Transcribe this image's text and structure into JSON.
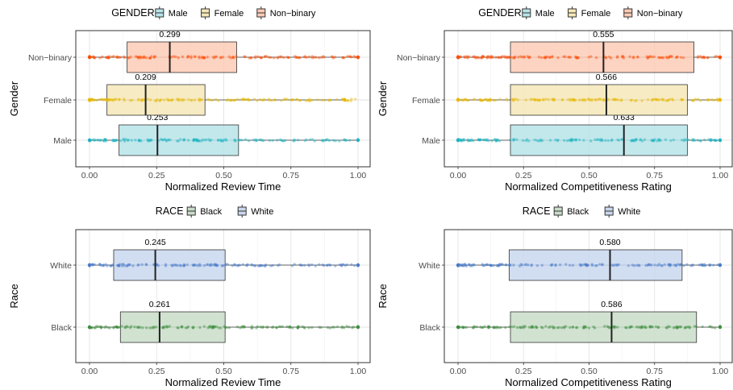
{
  "chart_data": [
    {
      "type": "boxplot",
      "legend_title": "GENDER",
      "legend_position": "top",
      "xlabel": "Normalized Review Time",
      "ylabel": "Gender",
      "xlim": [
        0,
        1
      ],
      "xticks": [
        "0.00",
        "0.25",
        "0.50",
        "0.75",
        "1.00"
      ],
      "grid": true,
      "categories": [
        "Male",
        "Female",
        "Non−binary"
      ],
      "series": [
        {
          "name": "Male",
          "color": "#1CB3C2",
          "fill": "#B7E4E9",
          "q1": 0.11,
          "median": 0.253,
          "q3": 0.555,
          "min": 0.0,
          "max": 1.0,
          "label": "0.253"
        },
        {
          "name": "Female",
          "color": "#E7B800",
          "fill": "#F6E8B8",
          "q1": 0.065,
          "median": 0.209,
          "q3": 0.43,
          "min": 0.0,
          "max": 0.95,
          "label": "0.209"
        },
        {
          "name": "Non−binary",
          "color": "#FC4E07",
          "fill": "#FDCBB6",
          "q1": 0.14,
          "median": 0.299,
          "q3": 0.548,
          "min": 0.0,
          "max": 1.0,
          "label": "0.299"
        }
      ]
    },
    {
      "type": "boxplot",
      "legend_title": "GENDER",
      "legend_position": "top",
      "xlabel": "Normalized Competitiveness Rating",
      "ylabel": "Gender",
      "xlim": [
        0,
        1
      ],
      "xticks": [
        "0.00",
        "0.25",
        "0.50",
        "0.75",
        "1.00"
      ],
      "grid": true,
      "categories": [
        "Male",
        "Female",
        "Non−binary"
      ],
      "series": [
        {
          "name": "Male",
          "color": "#1CB3C2",
          "fill": "#B7E4E9",
          "q1": 0.2,
          "median": 0.633,
          "q3": 0.875,
          "min": 0.0,
          "max": 1.0,
          "label": "0.633"
        },
        {
          "name": "Female",
          "color": "#E7B800",
          "fill": "#F6E8B8",
          "q1": 0.2,
          "median": 0.566,
          "q3": 0.875,
          "min": 0.0,
          "max": 1.0,
          "label": "0.566"
        },
        {
          "name": "Non−binary",
          "color": "#FC4E07",
          "fill": "#FDCBB6",
          "q1": 0.2,
          "median": 0.555,
          "q3": 0.9,
          "min": 0.0,
          "max": 1.0,
          "label": "0.555"
        }
      ]
    },
    {
      "type": "boxplot",
      "legend_title": "RACE",
      "legend_position": "top",
      "xlabel": "Normalized Review Time",
      "ylabel": "Race",
      "xlim": [
        0,
        1
      ],
      "xticks": [
        "0.00",
        "0.25",
        "0.50",
        "0.75",
        "1.00"
      ],
      "grid": true,
      "categories": [
        "Black",
        "White"
      ],
      "series": [
        {
          "name": "Black",
          "color": "#3E8E3E",
          "fill": "#C9DDC9",
          "q1": 0.115,
          "median": 0.261,
          "q3": 0.505,
          "min": 0.0,
          "max": 1.0,
          "label": "0.261"
        },
        {
          "name": "White",
          "color": "#4A7CC9",
          "fill": "#C9D7EE",
          "q1": 0.09,
          "median": 0.245,
          "q3": 0.505,
          "min": 0.0,
          "max": 1.0,
          "label": "0.245"
        }
      ]
    },
    {
      "type": "boxplot",
      "legend_title": "RACE",
      "legend_position": "top",
      "xlabel": "Normalized Competitiveness Rating",
      "ylabel": "Race",
      "xlim": [
        0,
        1
      ],
      "xticks": [
        "0.00",
        "0.25",
        "0.50",
        "0.75",
        "1.00"
      ],
      "grid": true,
      "categories": [
        "Black",
        "White"
      ],
      "series": [
        {
          "name": "Black",
          "color": "#3E8E3E",
          "fill": "#C9DDC9",
          "q1": 0.2,
          "median": 0.586,
          "q3": 0.91,
          "min": 0.0,
          "max": 1.0,
          "label": "0.586"
        },
        {
          "name": "White",
          "color": "#4A7CC9",
          "fill": "#C9D7EE",
          "q1": 0.195,
          "median": 0.58,
          "q3": 0.855,
          "min": 0.0,
          "max": 1.0,
          "label": "0.580"
        }
      ]
    }
  ]
}
